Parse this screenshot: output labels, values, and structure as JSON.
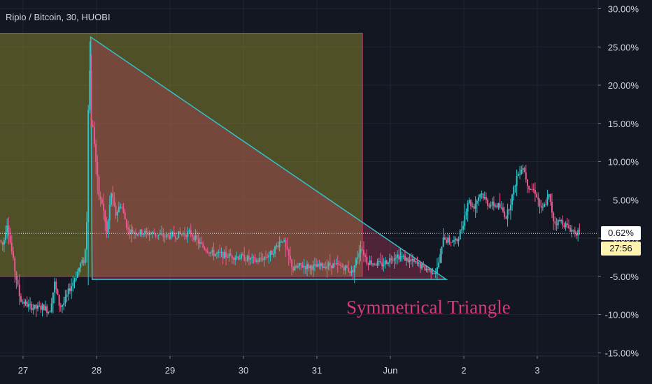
{
  "header": {
    "title": "Ripio / Bitcoin, 30, HUOBI"
  },
  "price_badge": {
    "value": "0.62%",
    "countdown": "27:56"
  },
  "annotation": {
    "text": "Symmetrical Triangle"
  },
  "colors": {
    "background": "#131722",
    "up": "#2ec4c9",
    "down": "#e8598c",
    "rect_fill": "#8c8a2e",
    "rect_border": "#d93d7a",
    "triangle_fill": "#c0395f",
    "triangle_line": "#2ec4c9",
    "axis_text": "#d1d4dc",
    "badge_bg": "#fff3b0"
  },
  "chart_data": {
    "type": "candlestick",
    "title": "Ripio / Bitcoin, 30, HUOBI",
    "y_unit": "percent",
    "ylim": [
      -15,
      30
    ],
    "y_ticks": [
      "30.00%",
      "25.00%",
      "20.00%",
      "15.00%",
      "10.00%",
      "5.00%",
      "0.00%",
      "-5.00%",
      "-10.00%",
      "-15.00%"
    ],
    "x_ticks": [
      "27",
      "28",
      "29",
      "30",
      "31",
      "Jun",
      "2",
      "3"
    ],
    "x_start": "May 27 00:00",
    "last_value": 0.62,
    "grid": true,
    "drawings": [
      {
        "type": "rectangle",
        "from_day": 26.56,
        "to_day": 31.62,
        "y_top": 26.8,
        "y_bottom": -5.0
      },
      {
        "type": "triangle",
        "points": [
          [
            26.92,
            26.3
          ],
          [
            26.94,
            -5.4
          ],
          [
            31.76,
            -5.4
          ]
        ]
      },
      {
        "type": "text",
        "text": "Symmetrical Triangle"
      }
    ],
    "series_path_waypoints": [
      [
        25.7,
        -0.3
      ],
      [
        25.75,
        -1.0
      ],
      [
        25.8,
        2.2
      ],
      [
        25.9,
        -3.8
      ],
      [
        25.98,
        -8.0
      ],
      [
        26.08,
        -8.8
      ],
      [
        26.2,
        -9.2
      ],
      [
        26.3,
        -9.0
      ],
      [
        26.38,
        -9.7
      ],
      [
        26.45,
        -5.9
      ],
      [
        26.52,
        -9.0
      ],
      [
        26.58,
        -8.5
      ],
      [
        26.65,
        -6.7
      ],
      [
        26.72,
        -5.4
      ],
      [
        26.8,
        -3.5
      ],
      [
        26.86,
        -2.8
      ],
      [
        26.89,
        2.8
      ],
      [
        26.91,
        18.5
      ],
      [
        26.93,
        22.0
      ],
      [
        26.95,
        15.0
      ],
      [
        26.98,
        14.0
      ],
      [
        27.02,
        9.0
      ],
      [
        27.06,
        5.0
      ],
      [
        27.1,
        4.6
      ],
      [
        27.16,
        0.5
      ],
      [
        27.22,
        6.0
      ],
      [
        27.28,
        3.0
      ],
      [
        27.35,
        4.5
      ],
      [
        27.45,
        1.0
      ],
      [
        27.6,
        0.7
      ],
      [
        27.8,
        0.6
      ],
      [
        27.95,
        0.2
      ],
      [
        28.1,
        0.4
      ],
      [
        28.3,
        0.7
      ],
      [
        28.45,
        -1.0
      ],
      [
        28.6,
        -2.0
      ],
      [
        28.8,
        -2.3
      ],
      [
        29.0,
        -2.5
      ],
      [
        29.2,
        -3.0
      ],
      [
        29.4,
        -2.0
      ],
      [
        29.55,
        0.0
      ],
      [
        29.62,
        -2.0
      ],
      [
        29.7,
        -4.1
      ],
      [
        29.8,
        -3.6
      ],
      [
        30.0,
        -3.8
      ],
      [
        30.2,
        -3.5
      ],
      [
        30.4,
        -3.8
      ],
      [
        30.5,
        -4.5
      ],
      [
        30.62,
        -1.0
      ],
      [
        30.7,
        -3.0
      ],
      [
        30.9,
        -3.5
      ],
      [
        31.1,
        -2.2
      ],
      [
        31.3,
        -3.0
      ],
      [
        31.5,
        -4.0
      ],
      [
        31.65,
        -4.4
      ],
      [
        31.72,
        -1.5
      ],
      [
        31.74,
        0.4
      ],
      [
        31.78,
        -0.3
      ],
      [
        31.92,
        -0.5
      ],
      [
        32.0,
        1.5
      ],
      [
        32.08,
        5.0
      ],
      [
        32.15,
        4.0
      ],
      [
        32.25,
        6.0
      ],
      [
        32.35,
        4.5
      ],
      [
        32.5,
        4.2
      ],
      [
        32.6,
        2.8
      ],
      [
        32.68,
        5.5
      ],
      [
        32.74,
        8.0
      ],
      [
        32.82,
        9.5
      ],
      [
        32.9,
        6.8
      ],
      [
        33.0,
        6.0
      ],
      [
        33.08,
        3.5
      ],
      [
        33.18,
        5.5
      ],
      [
        33.25,
        2.0
      ],
      [
        33.35,
        2.2
      ],
      [
        33.45,
        1.3
      ],
      [
        33.58,
        0.62
      ]
    ]
  }
}
